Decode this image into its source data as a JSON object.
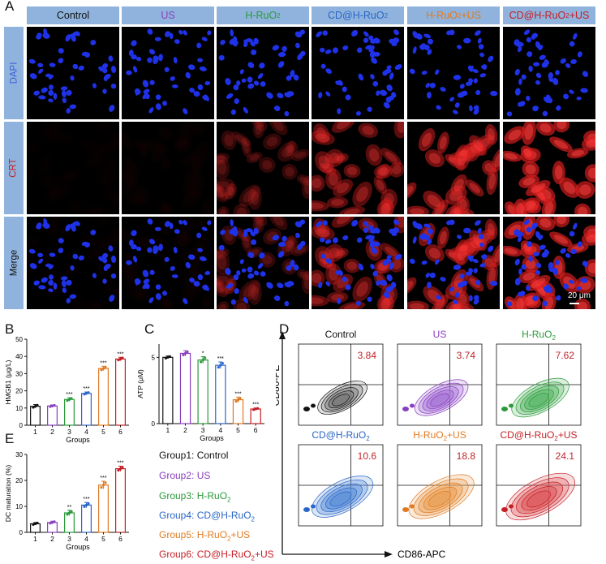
{
  "figure": {
    "panel_labels": {
      "A": "A",
      "B": "B",
      "C": "C",
      "D": "D",
      "E": "E"
    },
    "panel_a": {
      "columns": [
        {
          "label": "Control",
          "sub": "",
          "color": "#111111"
        },
        {
          "label": "US",
          "sub": "",
          "color": "#8a3ec0"
        },
        {
          "label": "H-RuO",
          "sub": "2",
          "color": "#2a9a3a"
        },
        {
          "label": "CD@H-RuO",
          "sub": "2",
          "color": "#2a66c8"
        },
        {
          "label": "H-RuO",
          "sub": "2",
          "suffix": "+US",
          "color": "#e07a22"
        },
        {
          "label": "CD@H-RuO",
          "sub": "2",
          "suffix": "+US",
          "color": "#c41e24"
        }
      ],
      "rows": [
        {
          "label": "DAPI",
          "color": "#3a5fd8"
        },
        {
          "label": "CRT",
          "color": "#c41e24"
        },
        {
          "label": "Merge",
          "color": "#111111"
        }
      ],
      "crt_intensity": [
        0.02,
        0.03,
        0.3,
        0.55,
        0.7,
        0.9
      ],
      "scale_bar": "20 μm"
    },
    "groups_legend": [
      {
        "text": "Group1: Control",
        "color": "#111111"
      },
      {
        "text": "Group2: US",
        "color": "#8a3ec0"
      },
      {
        "text": "Group3: H-RuO",
        "sub": "2",
        "color": "#2a9a3a"
      },
      {
        "text": "Group4: CD@H-RuO",
        "sub": "2",
        "color": "#2a66c8"
      },
      {
        "text": "Group5: H-RuO",
        "sub": "2",
        "suffix": "+US",
        "color": "#e07a22"
      },
      {
        "text": "Group6: CD@H-RuO",
        "sub": "2",
        "suffix": "+US",
        "color": "#c41e24"
      }
    ],
    "panel_d": {
      "x_label": "CD86-APC",
      "y_label": "CD80-PE",
      "plots": [
        {
          "title": "Control",
          "sub": "",
          "pct": "3.84",
          "color": "#111111",
          "fill": "#777777"
        },
        {
          "title": "US",
          "sub": "",
          "pct": "3.74",
          "color": "#8a3ec0",
          "fill": "#a877d6"
        },
        {
          "title": "H-RuO",
          "sub": "2",
          "pct": "7.62",
          "color": "#2a9a3a",
          "fill": "#5cb86a"
        },
        {
          "title": "CD@H-RuO",
          "sub": "2",
          "pct": "10.6",
          "color": "#2a66c8",
          "fill": "#5e90d8"
        },
        {
          "title": "H-RuO",
          "sub": "2",
          "suffix": "+US",
          "pct": "18.8",
          "color": "#e07a22",
          "fill": "#e9a158"
        },
        {
          "title": "CD@H-RuO",
          "sub": "2",
          "suffix": "+US",
          "pct": "24.1",
          "color": "#c41e24",
          "fill": "#dd5a5e"
        }
      ]
    }
  },
  "chart_data": [
    {
      "type": "bar",
      "panel": "B",
      "categories": [
        "1",
        "2",
        "3",
        "4",
        "5",
        "6"
      ],
      "values": [
        11,
        11.2,
        15,
        18.5,
        33,
        38.5
      ],
      "errors": [
        1,
        0.6,
        1,
        0.8,
        1.3,
        1
      ],
      "significance": [
        "",
        "",
        "***",
        "***",
        "***",
        "***"
      ],
      "colors": [
        "#111111",
        "#8a3ec0",
        "#2a9a3a",
        "#2a66c8",
        "#e07a22",
        "#c41e24"
      ],
      "xlabel": "Groups",
      "ylabel": "HMGB1 (μg/L)",
      "ylim": [
        0,
        50
      ],
      "yticks": [
        0,
        10,
        20,
        30,
        40,
        50
      ]
    },
    {
      "type": "bar",
      "panel": "C",
      "categories": [
        "1",
        "2",
        "3",
        "4",
        "5",
        "6"
      ],
      "values": [
        5,
        5.3,
        4.8,
        4.4,
        1.8,
        1.1
      ],
      "errors": [
        0.1,
        0.2,
        0.25,
        0.25,
        0.2,
        0.08
      ],
      "significance": [
        "",
        "",
        "*",
        "***",
        "***",
        "***"
      ],
      "colors": [
        "#111111",
        "#8a3ec0",
        "#2a9a3a",
        "#2a66c8",
        "#e07a22",
        "#c41e24"
      ],
      "xlabel": "Groups",
      "ylabel": "ATP (μM)",
      "ylim": [
        0,
        6
      ],
      "yticks": [
        0,
        5
      ]
    },
    {
      "type": "bar",
      "panel": "E",
      "categories": [
        "1",
        "2",
        "3",
        "4",
        "5",
        "6"
      ],
      "values": [
        3.3,
        3.8,
        7.5,
        10.5,
        18.2,
        24.5
      ],
      "errors": [
        0.5,
        0.5,
        1,
        1,
        1.5,
        1
      ],
      "significance": [
        "",
        "",
        "**",
        "***",
        "***",
        "***"
      ],
      "colors": [
        "#111111",
        "#8a3ec0",
        "#2a9a3a",
        "#2a66c8",
        "#e07a22",
        "#c41e24"
      ],
      "xlabel": "Groups",
      "ylabel": "DC maturation (%)",
      "ylim": [
        0,
        30
      ],
      "yticks": [
        0,
        10,
        20,
        30
      ]
    }
  ]
}
